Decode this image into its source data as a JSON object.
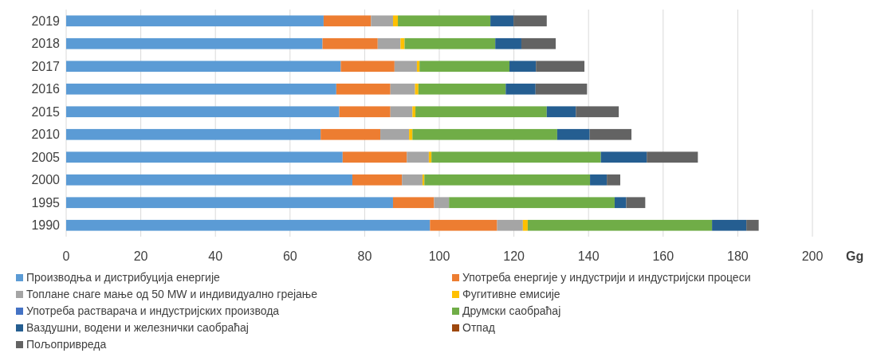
{
  "chart_data": {
    "type": "bar",
    "orientation": "horizontal",
    "stacked": true,
    "categories": [
      "2019",
      "2018",
      "2017",
      "2016",
      "2015",
      "2010",
      "2005",
      "2000",
      "1995",
      "1990"
    ],
    "series": [
      {
        "name": "Производња и дистрибуција енергије",
        "color": "#5b9bd5",
        "values": [
          69.0,
          68.7,
          73.6,
          72.4,
          73.2,
          68.2,
          74.1,
          76.7,
          87.6,
          97.5
        ]
      },
      {
        "name": "Употреба енергије у индустрији и индустријски процеси",
        "color": "#ed7d31",
        "values": [
          12.7,
          14.8,
          14.4,
          14.5,
          13.7,
          16.0,
          17.2,
          13.3,
          11.0,
          18.0
        ]
      },
      {
        "name": "Топлане снаге мање од 50 MW и индивидуално грејање",
        "color": "#a5a5a5",
        "values": [
          5.9,
          6.1,
          6.0,
          6.6,
          5.9,
          7.7,
          5.9,
          5.5,
          4.0,
          6.9
        ]
      },
      {
        "name": "Фугитивне емисије",
        "color": "#ffc000",
        "values": [
          1.3,
          1.1,
          0.7,
          0.9,
          0.8,
          0.9,
          0.7,
          0.5,
          0,
          1.3
        ]
      },
      {
        "name": "Употреба растварача и индустријских производа",
        "color": "#4472c4",
        "values": [
          0,
          0,
          0,
          0,
          0,
          0,
          0,
          0,
          0,
          0
        ]
      },
      {
        "name": "Друмски саобраћај",
        "color": "#70ad47",
        "values": [
          24.8,
          24.3,
          24.1,
          23.4,
          35.2,
          38.8,
          45.4,
          44.4,
          44.4,
          49.4
        ]
      },
      {
        "name": "Ваздушни, водени и железнички саобраћај",
        "color": "#255e91",
        "values": [
          6.2,
          7.0,
          7.1,
          8.0,
          7.8,
          8.7,
          12.3,
          4.5,
          3.1,
          9.2
        ]
      },
      {
        "name": "Отпад",
        "color": "#9e480e",
        "values": [
          0,
          0,
          0,
          0,
          0,
          0,
          0,
          0,
          0,
          0
        ]
      },
      {
        "name": "Пољопривреда",
        "color": "#636363",
        "values": [
          8.9,
          9.2,
          13.0,
          13.8,
          11.5,
          11.2,
          13.7,
          3.6,
          5.1,
          3.3
        ]
      }
    ],
    "xlim": [
      0,
      200
    ],
    "xticks": [
      0,
      20,
      40,
      60,
      80,
      100,
      120,
      140,
      160,
      180,
      200
    ],
    "xlabel": "Gg",
    "grid": "x",
    "legend": "bottom"
  }
}
